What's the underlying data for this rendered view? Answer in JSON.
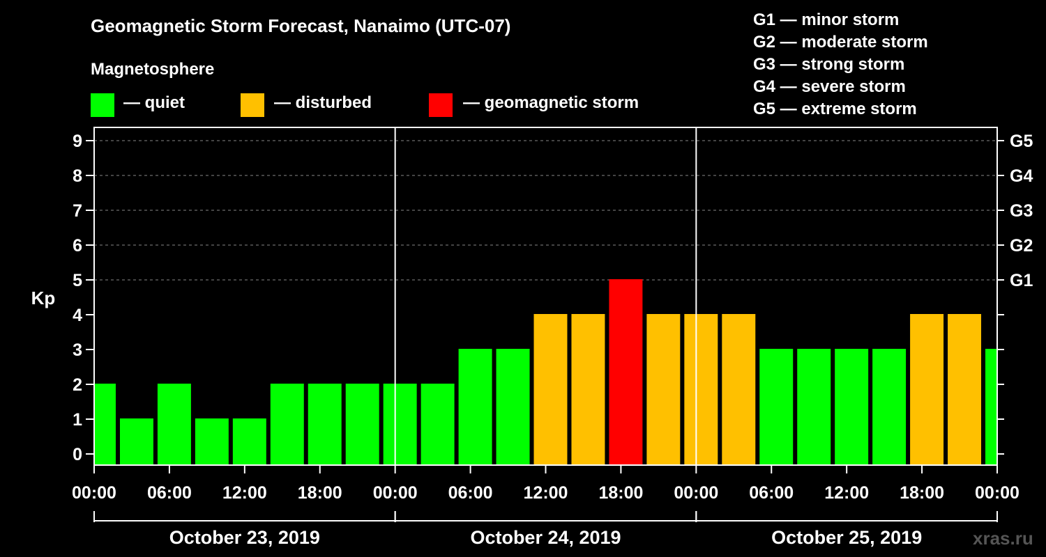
{
  "header": {
    "title": "Geomagnetic Storm Forecast, Nanaimo (UTC-07)",
    "subtitle": "Magnetosphere"
  },
  "legend": [
    {
      "label": "— quiet",
      "color": "#00ff00"
    },
    {
      "label": "— disturbed",
      "color": "#ffc000"
    },
    {
      "label": "— geomagnetic storm",
      "color": "#ff0000"
    }
  ],
  "storm_levels": [
    "G1 — minor storm",
    "G2 — moderate storm",
    "G3 — strong storm",
    "G4 — severe storm",
    "G5 — extreme storm"
  ],
  "watermark": "xras.ru",
  "chart_data": {
    "type": "bar",
    "title": "Geomagnetic Storm Forecast, Nanaimo (UTC-07)",
    "ylabel": "Kp",
    "ylim": [
      0,
      9
    ],
    "yticks": [
      "0",
      "1",
      "2",
      "3",
      "4",
      "5",
      "6",
      "7",
      "8",
      "9"
    ],
    "right_axis_labels": [
      {
        "kp": 5,
        "label": "G1"
      },
      {
        "kp": 6,
        "label": "G2"
      },
      {
        "kp": 7,
        "label": "G3"
      },
      {
        "kp": 8,
        "label": "G4"
      },
      {
        "kp": 9,
        "label": "G5"
      }
    ],
    "x_range_hours": [
      0,
      72
    ],
    "xtick_hours": [
      0,
      6,
      12,
      18,
      24,
      30,
      36,
      42,
      48,
      54,
      60,
      66,
      72
    ],
    "xtick_labels": [
      "00:00",
      "06:00",
      "12:00",
      "18:00",
      "00:00",
      "06:00",
      "12:00",
      "18:00",
      "00:00",
      "06:00",
      "12:00",
      "18:00",
      "00:00"
    ],
    "day_dividers_hours": [
      24,
      48
    ],
    "days": [
      {
        "label": "October 23, 2019",
        "start_hour": 0,
        "end_hour": 24
      },
      {
        "label": "October 24, 2019",
        "start_hour": 24,
        "end_hour": 48
      },
      {
        "label": "October 25, 2019",
        "start_hour": 48,
        "end_hour": 72
      }
    ],
    "bar_start_hours": [
      -1,
      2,
      5,
      8,
      11,
      14,
      17,
      20,
      23,
      26,
      29,
      32,
      35,
      38,
      41,
      44,
      47,
      50,
      53,
      56,
      59,
      62,
      65,
      68,
      71
    ],
    "bar_width_hours": 3,
    "values": [
      2,
      1,
      2,
      1,
      1,
      2,
      2,
      2,
      2,
      2,
      3,
      3,
      4,
      4,
      5,
      4,
      4,
      4,
      3,
      3,
      3,
      3,
      4,
      4,
      3
    ],
    "color_thresholds": {
      "quiet_max": 3,
      "disturbed_max": 4
    },
    "colors": {
      "quiet": "#00ff00",
      "disturbed": "#ffc000",
      "storm": "#ff0000"
    }
  }
}
